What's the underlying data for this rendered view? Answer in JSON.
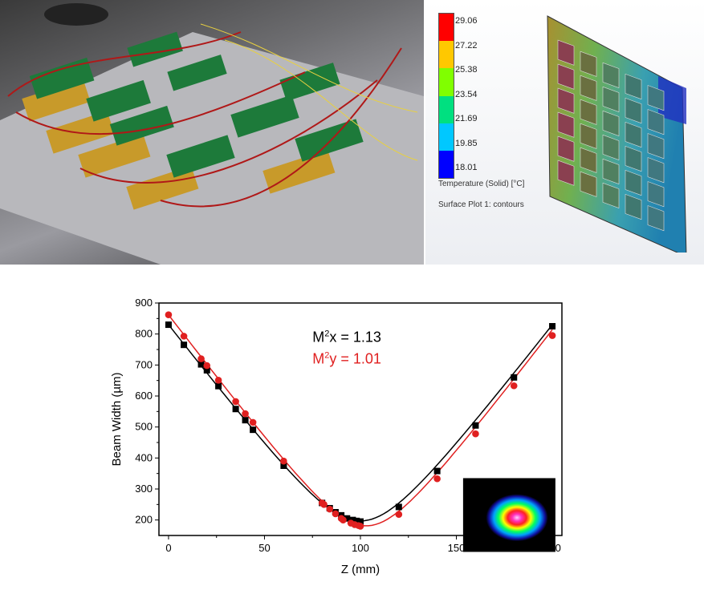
{
  "photo": {
    "description_icon": "laser-driver-boards-photo"
  },
  "simulation": {
    "colorbar": {
      "labels": [
        "29.06",
        "27.22",
        "25.38",
        "23.54",
        "21.69",
        "19.85",
        "18.01"
      ],
      "colors": [
        "#ff0000",
        "#ffc800",
        "#80ff00",
        "#00e080",
        "#00c8ff",
        "#0000ff"
      ]
    },
    "legend_title": "Temperature (Solid) [°C]",
    "plot_name": "Surface Plot 1: contours"
  },
  "chart_data": {
    "type": "scatter",
    "xlabel": "Z (mm)",
    "ylabel": "Beam Width (µm)",
    "xlim": [
      -5,
      205
    ],
    "ylim": [
      150,
      900
    ],
    "xticks": [
      "0",
      "50",
      "100",
      "150",
      "200"
    ],
    "yticks": [
      "200",
      "300",
      "400",
      "500",
      "600",
      "700",
      "800",
      "900"
    ],
    "grid": false,
    "annotations": [
      {
        "text_main": "M",
        "sup": "2",
        "text_rest": "x = 1.13",
        "color": "#000000"
      },
      {
        "text_main": "M",
        "sup": "2",
        "text_rest": "y = 1.01",
        "color": "#e02020"
      }
    ],
    "series": [
      {
        "marker": "square",
        "color": "#000000",
        "x": [
          0,
          8,
          17,
          20,
          26,
          35,
          40,
          44,
          60,
          80,
          84,
          87,
          90,
          93,
          96,
          98,
          100,
          120,
          140,
          160,
          180,
          200
        ],
        "y": [
          830,
          765,
          702,
          683,
          632,
          558,
          522,
          491,
          375,
          255,
          238,
          225,
          215,
          205,
          200,
          197,
          195,
          242,
          358,
          505,
          660,
          825
        ]
      },
      {
        "marker": "circle",
        "color": "#e02020",
        "x": [
          0,
          8,
          17,
          20,
          26,
          35,
          40,
          44,
          60,
          80,
          81,
          84,
          87,
          90,
          91,
          95,
          97,
          99,
          100,
          120,
          140,
          160,
          180,
          200
        ],
        "y": [
          862,
          793,
          720,
          698,
          651,
          582,
          543,
          515,
          390,
          255,
          250,
          235,
          220,
          205,
          200,
          190,
          185,
          182,
          180,
          218,
          333,
          478,
          633,
          795
        ]
      }
    ],
    "inset": "beam-profile-image"
  }
}
